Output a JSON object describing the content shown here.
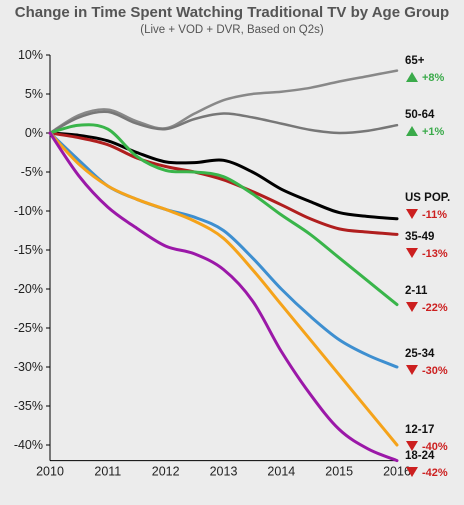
{
  "chart_data": {
    "type": "line",
    "title": "Change in Time Spent Watching Traditional TV by Age Group",
    "subtitle": "(Live + VOD + DVR, Based on Q2s)",
    "xlabel": "",
    "ylabel": "",
    "x": [
      2010,
      2010.5,
      2011,
      2011.5,
      2012,
      2012.5,
      2013,
      2013.5,
      2014,
      2014.5,
      2015,
      2015.5,
      2016
    ],
    "xticks": [
      "2010",
      "2011",
      "2012",
      "2013",
      "2014",
      "2015",
      "2016"
    ],
    "yticks": [
      "10%",
      "5%",
      "0%",
      "-5%",
      "-10%",
      "-15%",
      "-20%",
      "-25%",
      "-30%",
      "-35%",
      "-40%"
    ],
    "ylim": [
      -42,
      10
    ],
    "xlim": [
      2010,
      2016
    ],
    "grid": false,
    "legend": "none",
    "series": [
      {
        "name": "65+",
        "change": "+8%",
        "trend": "up",
        "color": "#888888",
        "values": [
          0,
          2.3,
          3.0,
          1.5,
          0.6,
          2.5,
          4.2,
          5.0,
          5.3,
          5.8,
          6.6,
          7.3,
          8.0
        ]
      },
      {
        "name": "50-64",
        "change": "+1%",
        "trend": "up",
        "color": "#777777",
        "values": [
          0,
          2.0,
          2.7,
          1.2,
          0.5,
          1.8,
          2.5,
          2.0,
          1.2,
          0.4,
          0,
          0.3,
          1.0
        ]
      },
      {
        "name": "US POP.",
        "change": "-11%",
        "trend": "down",
        "color": "#000000",
        "values": [
          0,
          -0.3,
          -1.0,
          -2.5,
          -3.7,
          -3.8,
          -3.5,
          -5.0,
          -7.2,
          -8.8,
          -10.2,
          -10.7,
          -11.0
        ]
      },
      {
        "name": "35-49",
        "change": "-13%",
        "trend": "down",
        "color": "#b01e1e",
        "values": [
          0,
          -0.6,
          -1.5,
          -3.2,
          -4.3,
          -5.0,
          -6.0,
          -7.5,
          -9.2,
          -11.0,
          -12.3,
          -12.7,
          -13.0
        ]
      },
      {
        "name": "2-11",
        "change": "-22%",
        "trend": "down",
        "color": "#39b54a",
        "values": [
          0,
          1.0,
          0.5,
          -3.0,
          -4.8,
          -5.0,
          -5.6,
          -7.8,
          -10.5,
          -13.0,
          -16.0,
          -19.0,
          -22.0
        ]
      },
      {
        "name": "25-34",
        "change": "-30%",
        "trend": "down",
        "color": "#3e8fd0",
        "values": [
          0,
          -3.5,
          -6.8,
          -8.5,
          -9.8,
          -10.8,
          -12.5,
          -16.0,
          -20.0,
          -23.5,
          -26.5,
          -28.5,
          -30.0
        ]
      },
      {
        "name": "12-17",
        "change": "-40%",
        "trend": "down",
        "color": "#f5a31a",
        "values": [
          0,
          -4.0,
          -6.8,
          -8.5,
          -9.8,
          -11.3,
          -13.5,
          -17.5,
          -22.0,
          -26.5,
          -31.0,
          -35.5,
          -40.0
        ]
      },
      {
        "name": "18-24",
        "change": "-42%",
        "trend": "down",
        "color": "#9b18a8",
        "values": [
          0,
          -5.5,
          -9.5,
          -12.2,
          -14.5,
          -15.5,
          -17.5,
          -21.5,
          -28.0,
          -33.5,
          -38.0,
          -40.5,
          -42.0
        ]
      }
    ]
  }
}
